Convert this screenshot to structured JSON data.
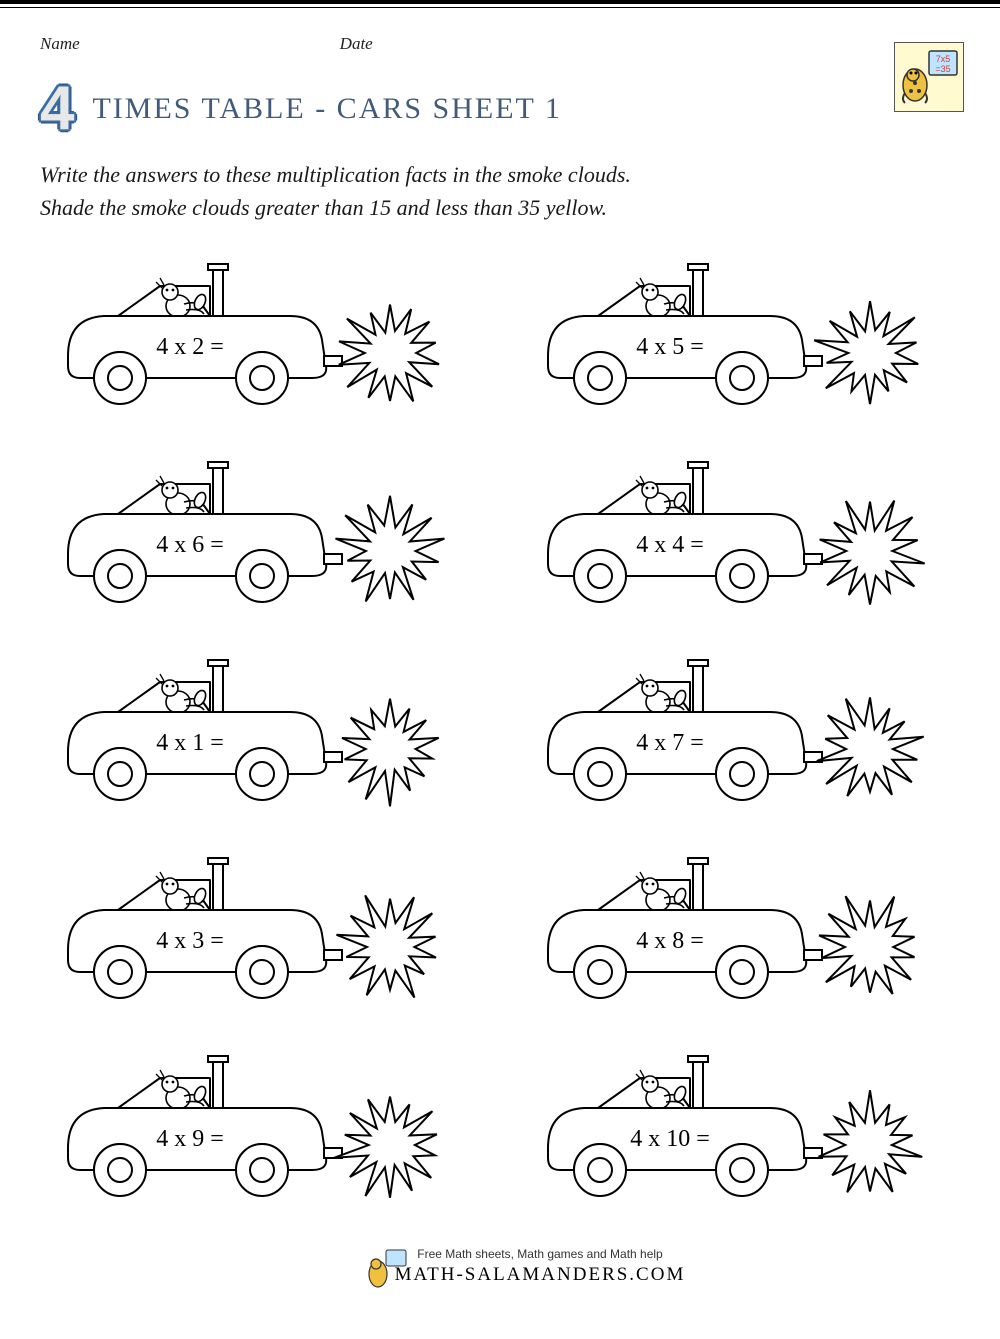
{
  "header": {
    "name_label": "Name",
    "date_label": "Date"
  },
  "title": {
    "number": "4",
    "text": "TIMES TABLE - CARS SHEET 1"
  },
  "logo": {
    "example": "7x5",
    "answer": "=35"
  },
  "instructions": {
    "line1": "Write the answers to these multiplication facts in the smoke clouds.",
    "line2": "Shade the smoke clouds greater than 15 and less than 35 yellow."
  },
  "problems": [
    {
      "expr": "4 x 2 ="
    },
    {
      "expr": "4 x 5 ="
    },
    {
      "expr": "4 x 6 ="
    },
    {
      "expr": "4 x 4 ="
    },
    {
      "expr": "4 x 1 ="
    },
    {
      "expr": "4 x 7 ="
    },
    {
      "expr": "4 x 3 ="
    },
    {
      "expr": "4 x 8 ="
    },
    {
      "expr": "4 x 9 ="
    },
    {
      "expr": "4 x 10 ="
    }
  ],
  "footer": {
    "tagline": "Free Math sheets, Math games and Math help",
    "brand": "MATH-SALAMANDERS.COM"
  },
  "style": {
    "stroke": "#000000",
    "stroke_width": 2,
    "fill": "#ffffff",
    "expr_fontsize": 24,
    "title_color": "#425b7a",
    "accent_blue": "#3a6ea5"
  }
}
